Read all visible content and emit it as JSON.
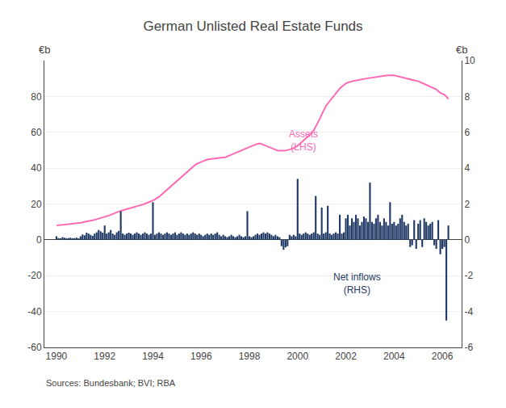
{
  "chart_data": {
    "type": "bar",
    "title": "German Unlisted Real Estate Funds",
    "ylabel": "€b",
    "y2label": "€b",
    "annotations": [
      "Sources: Bundesbank; BVI; RBA"
    ],
    "grid": true,
    "xlim": [
      1989.5,
      2006.8
    ],
    "xticks": [
      1990,
      1992,
      1994,
      1996,
      1998,
      2000,
      2002,
      2004,
      2006
    ],
    "ylim": [
      -60,
      100
    ],
    "yticks": [
      -60,
      -40,
      -20,
      0,
      20,
      40,
      60,
      80
    ],
    "y2lim": [
      -6,
      10
    ],
    "y2ticks": [
      -6,
      -4,
      -2,
      0,
      2,
      4,
      6,
      8,
      10
    ],
    "x": [
      1990.0,
      1990.083,
      1990.167,
      1990.25,
      1990.333,
      1990.417,
      1990.5,
      1990.583,
      1990.667,
      1990.75,
      1990.833,
      1990.917,
      1991.0,
      1991.083,
      1991.167,
      1991.25,
      1991.333,
      1991.417,
      1991.5,
      1991.583,
      1991.667,
      1991.75,
      1991.833,
      1991.917,
      1992.0,
      1992.083,
      1992.167,
      1992.25,
      1992.333,
      1992.417,
      1992.5,
      1992.583,
      1992.667,
      1992.75,
      1992.833,
      1992.917,
      1993.0,
      1993.083,
      1993.167,
      1993.25,
      1993.333,
      1993.417,
      1993.5,
      1993.583,
      1993.667,
      1993.75,
      1993.833,
      1993.917,
      1994.0,
      1994.083,
      1994.167,
      1994.25,
      1994.333,
      1994.417,
      1994.5,
      1994.583,
      1994.667,
      1994.75,
      1994.833,
      1994.917,
      1995.0,
      1995.083,
      1995.167,
      1995.25,
      1995.333,
      1995.417,
      1995.5,
      1995.583,
      1995.667,
      1995.75,
      1995.833,
      1995.917,
      1996.0,
      1996.083,
      1996.167,
      1996.25,
      1996.333,
      1996.417,
      1996.5,
      1996.583,
      1996.667,
      1996.75,
      1996.833,
      1996.917,
      1997.0,
      1997.083,
      1997.167,
      1997.25,
      1997.333,
      1997.417,
      1997.5,
      1997.583,
      1997.667,
      1997.75,
      1997.833,
      1997.917,
      1998.0,
      1998.083,
      1998.167,
      1998.25,
      1998.333,
      1998.417,
      1998.5,
      1998.583,
      1998.667,
      1998.75,
      1998.833,
      1998.917,
      1999.0,
      1999.083,
      1999.167,
      1999.25,
      1999.333,
      1999.417,
      1999.5,
      1999.583,
      1999.667,
      1999.75,
      1999.833,
      1999.917,
      2000.0,
      2000.083,
      2000.167,
      2000.25,
      2000.333,
      2000.417,
      2000.5,
      2000.583,
      2000.667,
      2000.75,
      2000.833,
      2000.917,
      2001.0,
      2001.083,
      2001.167,
      2001.25,
      2001.333,
      2001.417,
      2001.5,
      2001.583,
      2001.667,
      2001.75,
      2001.833,
      2001.917,
      2002.0,
      2002.083,
      2002.167,
      2002.25,
      2002.333,
      2002.417,
      2002.5,
      2002.583,
      2002.667,
      2002.75,
      2002.833,
      2002.917,
      2003.0,
      2003.083,
      2003.167,
      2003.25,
      2003.333,
      2003.417,
      2003.5,
      2003.583,
      2003.667,
      2003.75,
      2003.833,
      2003.917,
      2004.0,
      2004.083,
      2004.167,
      2004.25,
      2004.333,
      2004.417,
      2004.5,
      2004.583,
      2004.667,
      2004.75,
      2004.833,
      2004.917,
      2005.0,
      2005.083,
      2005.167,
      2005.25,
      2005.333,
      2005.417,
      2005.5,
      2005.583,
      2005.667,
      2005.75,
      2005.833,
      2005.917,
      2006.0,
      2006.083,
      2006.167,
      2006.25
    ],
    "series": [
      {
        "name": "Net inflows\n(RHS)",
        "type": "bar",
        "axis": "y2",
        "color": "#1F3864",
        "values": [
          0.2,
          0.1,
          0.08,
          0.15,
          0.12,
          0.08,
          0.1,
          0.12,
          0.08,
          0.1,
          0.12,
          0.08,
          0.2,
          0.3,
          0.25,
          0.4,
          0.35,
          0.28,
          0.22,
          0.35,
          0.42,
          0.55,
          0.48,
          0.4,
          0.8,
          0.35,
          0.42,
          0.55,
          0.35,
          0.28,
          0.42,
          0.5,
          1.6,
          0.35,
          0.28,
          0.35,
          0.4,
          0.35,
          0.28,
          0.35,
          0.42,
          0.35,
          0.28,
          0.35,
          0.42,
          0.35,
          0.28,
          0.35,
          2.1,
          0.28,
          0.35,
          0.42,
          0.35,
          0.28,
          0.35,
          0.42,
          0.35,
          0.28,
          0.35,
          0.42,
          0.28,
          0.35,
          0.42,
          0.35,
          0.28,
          0.35,
          0.28,
          0.35,
          0.42,
          0.35,
          0.28,
          0.35,
          0.28,
          0.2,
          0.28,
          0.35,
          0.28,
          0.35,
          0.28,
          0.35,
          0.42,
          0.28,
          0.2,
          0.28,
          0.2,
          0.15,
          0.2,
          0.28,
          0.2,
          0.15,
          0.2,
          0.28,
          0.2,
          0.15,
          0.2,
          1.6,
          0.2,
          0.15,
          0.2,
          0.28,
          0.35,
          0.28,
          0.35,
          0.42,
          0.35,
          0.42,
          0.35,
          0.28,
          0.2,
          0.28,
          0.2,
          0.15,
          -0.35,
          -0.55,
          -0.42,
          -0.35,
          0.28,
          0.2,
          0.28,
          0.2,
          3.4,
          0.35,
          0.28,
          0.35,
          0.42,
          0.35,
          0.28,
          0.35,
          0.42,
          2.45,
          0.35,
          0.28,
          1.8,
          0.35,
          0.42,
          1.9,
          0.35,
          0.28,
          0.35,
          0.42,
          0.35,
          1.4,
          0.35,
          0.42,
          1.2,
          1.4,
          0.8,
          1.2,
          1.0,
          1.4,
          1.2,
          0.8,
          1.0,
          1.3,
          1.2,
          1.0,
          3.2,
          1.0,
          0.9,
          1.2,
          1.4,
          1.0,
          0.8,
          1.2,
          1.0,
          0.8,
          2.1,
          0.9,
          1.0,
          0.8,
          0.9,
          1.2,
          1.4,
          1.0,
          0.8,
          0.9,
          -0.4,
          -0.3,
          1.1,
          -0.5,
          0.9,
          1.1,
          -0.4,
          1.2,
          1.0,
          0.8,
          0.9,
          1.0,
          -0.3,
          -0.5,
          1.1,
          -0.8,
          -0.5,
          -0.4,
          -4.5,
          0.8
        ]
      },
      {
        "name": "Assets\n(LHS)",
        "type": "line",
        "color": "#FF69B4",
        "values": [
          8.0,
          8.1,
          8.2,
          8.3,
          8.4,
          8.5,
          8.6,
          8.7,
          8.8,
          9.0,
          9.1,
          9.3,
          9.5,
          9.7,
          9.9,
          10.1,
          10.3,
          10.6,
          10.9,
          11.2,
          11.5,
          11.8,
          12.1,
          12.4,
          12.7,
          13.0,
          13.5,
          14.0,
          14.5,
          15.0,
          15.5,
          15.8,
          16.2,
          16.5,
          16.8,
          17.0,
          17.3,
          17.6,
          17.9,
          18.2,
          18.5,
          18.9,
          19.3,
          19.7,
          20.1,
          20.5,
          21.0,
          21.5,
          22.0,
          22.5,
          23.2,
          24.0,
          25.0,
          26.0,
          27.0,
          28.0,
          29.0,
          30.0,
          31.0,
          32.0,
          33.0,
          34.0,
          35.0,
          36.2,
          37.2,
          38.2,
          39.2,
          40.2,
          41.0,
          41.8,
          42.5,
          43.0,
          43.5,
          44.0,
          44.5,
          44.8,
          45.0,
          45.2,
          45.4,
          45.5,
          45.6,
          45.7,
          45.8,
          45.9,
          46.0,
          46.5,
          47.0,
          47.5,
          48.0,
          48.5,
          49.0,
          49.5,
          50.0,
          50.5,
          51.0,
          51.5,
          52.0,
          52.5,
          52.8,
          53.2,
          53.5,
          53.8,
          53.5,
          53.0,
          52.5,
          52.0,
          51.5,
          51.0,
          50.5,
          50.0,
          49.8,
          49.7,
          49.6,
          49.7,
          49.8,
          50.0,
          50.3,
          50.7,
          51.2,
          51.8,
          52.5,
          53.5,
          54.5,
          55.5,
          56.5,
          57.5,
          58.5,
          59.5,
          61.0,
          63.0,
          65.0,
          67.5,
          70.0,
          72.5,
          74.5,
          76.0,
          77.5,
          79.0,
          80.0,
          81.5,
          83.0,
          84.5,
          85.5,
          86.5,
          87.2,
          87.8,
          88.2,
          88.5,
          88.7,
          88.9,
          89.0,
          89.2,
          89.5,
          89.8,
          90.0,
          90.2,
          90.4,
          90.5,
          90.6,
          90.8,
          91.0,
          91.2,
          91.5,
          91.6,
          91.7,
          91.8,
          91.9,
          92.0,
          91.8,
          91.5,
          91.2,
          90.8,
          90.5,
          90.3,
          90.0,
          89.8,
          89.5,
          89.2,
          89.0,
          88.8,
          88.5,
          88.0,
          87.5,
          87.0,
          86.5,
          86.0,
          85.5,
          85.0,
          84.5,
          84.0,
          83.0,
          82.0,
          81.5,
          81.0,
          80.0,
          78.5
        ]
      }
    ]
  }
}
